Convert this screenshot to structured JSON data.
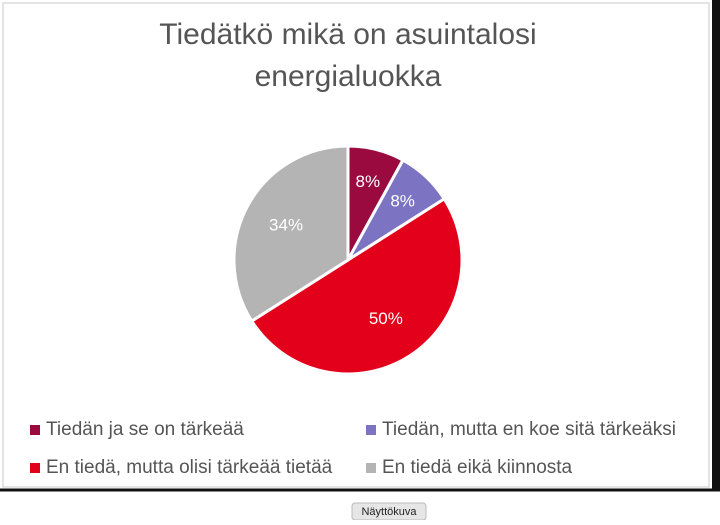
{
  "chart_data": {
    "type": "pie",
    "title": "Tiedätkö mikä on asuintalosi energialuokka",
    "categories": [
      "Tiedän ja se on tärkeää",
      "Tiedän, mutta en koe sitä tärkeäksi",
      "En tiedä, mutta olisi tärkeää tietää",
      "En tiedä eikä kiinnosta"
    ],
    "values": [
      8,
      8,
      50,
      34
    ],
    "value_labels": [
      "8%",
      "8%",
      "50%",
      "34%"
    ],
    "colors": [
      "#9b0a3e",
      "#7c73c2",
      "#e3001b",
      "#b4b4b4"
    ],
    "legend": "bottom"
  },
  "overlay_label": "Näyttökuva"
}
